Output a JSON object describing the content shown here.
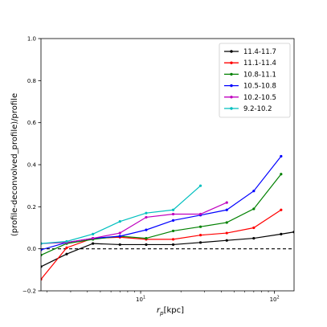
{
  "chart_data": {
    "type": "line",
    "xlabel_main": "r",
    "xlabel_sub": "p",
    "xlabel_unit": "[kpc]",
    "ylabel": "(profile-deconvolved_profile)/profile",
    "x_scale": "log",
    "xlim": [
      1.8,
      140
    ],
    "ylim": [
      -0.2,
      1.0
    ],
    "y_ticks": [
      "−0.2",
      "0.0",
      "0.2",
      "0.4",
      "0.6",
      "0.8",
      "1.0"
    ],
    "x_ticks": [
      {
        "base": "10",
        "exp": "1",
        "value": 10
      },
      {
        "base": "10",
        "exp": "2",
        "value": 100
      }
    ],
    "reference_line": {
      "y": 0.0,
      "style": "dashed",
      "color": "#000000"
    },
    "grid": false,
    "legend_position": "top-right",
    "series": [
      {
        "name": "11.4-11.7",
        "color": "#000000",
        "x": [
          1.8,
          2.8,
          4.4,
          7.0,
          11.0,
          17.5,
          28.0,
          44.0,
          70.0,
          112.0,
          140.0
        ],
        "y": [
          -0.085,
          -0.025,
          0.025,
          0.02,
          0.02,
          0.02,
          0.03,
          0.04,
          0.05,
          0.07,
          0.08
        ]
      },
      {
        "name": "11.1-11.4",
        "color": "#ff0000",
        "x": [
          1.8,
          2.8,
          4.4,
          7.0,
          11.0,
          17.5,
          28.0,
          44.0,
          70.0,
          112.0
        ],
        "y": [
          -0.145,
          0.005,
          0.05,
          0.055,
          0.045,
          0.045,
          0.065,
          0.075,
          0.1,
          0.185
        ]
      },
      {
        "name": "10.8-11.1",
        "color": "#008000",
        "x": [
          1.8,
          2.8,
          4.4,
          7.0,
          11.0,
          17.5,
          28.0,
          44.0,
          70.0,
          112.0
        ],
        "y": [
          -0.03,
          0.025,
          0.045,
          0.06,
          0.05,
          0.085,
          0.105,
          0.125,
          0.19,
          0.355
        ]
      },
      {
        "name": "10.5-10.8",
        "color": "#0000ff",
        "x": [
          1.8,
          2.8,
          4.4,
          7.0,
          11.0,
          17.5,
          28.0,
          44.0,
          70.0,
          112.0
        ],
        "y": [
          -0.005,
          0.03,
          0.05,
          0.06,
          0.09,
          0.135,
          0.16,
          0.185,
          0.275,
          0.44
        ]
      },
      {
        "name": "10.2-10.5",
        "color": "#bf00bf",
        "x": [
          1.8,
          2.8,
          4.4,
          7.0,
          11.0,
          17.5,
          28.0,
          44.0
        ],
        "y": [
          0.025,
          0.03,
          0.05,
          0.075,
          0.15,
          0.165,
          0.165,
          0.22
        ]
      },
      {
        "name": "9.2-10.2",
        "color": "#00bfbf",
        "x": [
          1.8,
          2.8,
          4.4,
          7.0,
          11.0,
          17.5,
          28.0
        ],
        "y": [
          0.025,
          0.035,
          0.07,
          0.13,
          0.17,
          0.185,
          0.3
        ]
      }
    ]
  }
}
